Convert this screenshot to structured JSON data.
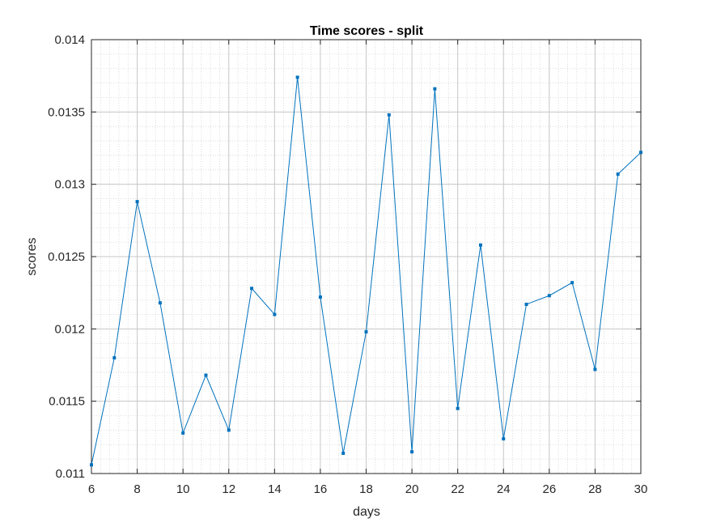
{
  "chart_data": {
    "type": "line",
    "title": "Time scores - split",
    "xlabel": "days",
    "ylabel": "scores",
    "xlim": [
      6,
      30
    ],
    "ylim": [
      0.011,
      0.014
    ],
    "xticks": [
      6,
      8,
      10,
      12,
      14,
      16,
      18,
      20,
      22,
      24,
      26,
      28,
      30
    ],
    "yticks": [
      0.011,
      0.0115,
      0.012,
      0.0125,
      0.013,
      0.0135,
      0.014
    ],
    "xtick_labels": [
      "6",
      "8",
      "10",
      "12",
      "14",
      "16",
      "18",
      "20",
      "22",
      "24",
      "26",
      "28",
      "30"
    ],
    "ytick_labels": [
      "0.011",
      "0.0115",
      "0.012",
      "0.0125",
      "0.013",
      "0.0135",
      "0.014"
    ],
    "grid": true,
    "minor_grid": true,
    "series": [
      {
        "color": "#0072bd",
        "marker": "square",
        "x": [
          6,
          7,
          8,
          9,
          10,
          11,
          12,
          13,
          14,
          15,
          16,
          17,
          18,
          19,
          20,
          21,
          22,
          23,
          24,
          25,
          26,
          27,
          28,
          29,
          30
        ],
        "values": [
          0.01106,
          0.0118,
          0.01288,
          0.01218,
          0.01128,
          0.01168,
          0.0113,
          0.01228,
          0.0121,
          0.01374,
          0.01222,
          0.01114,
          0.01198,
          0.01348,
          0.01115,
          0.01366,
          0.01145,
          0.01258,
          0.01124,
          0.01217,
          0.01223,
          0.01232,
          0.01172,
          0.01307,
          0.01322
        ]
      }
    ]
  }
}
